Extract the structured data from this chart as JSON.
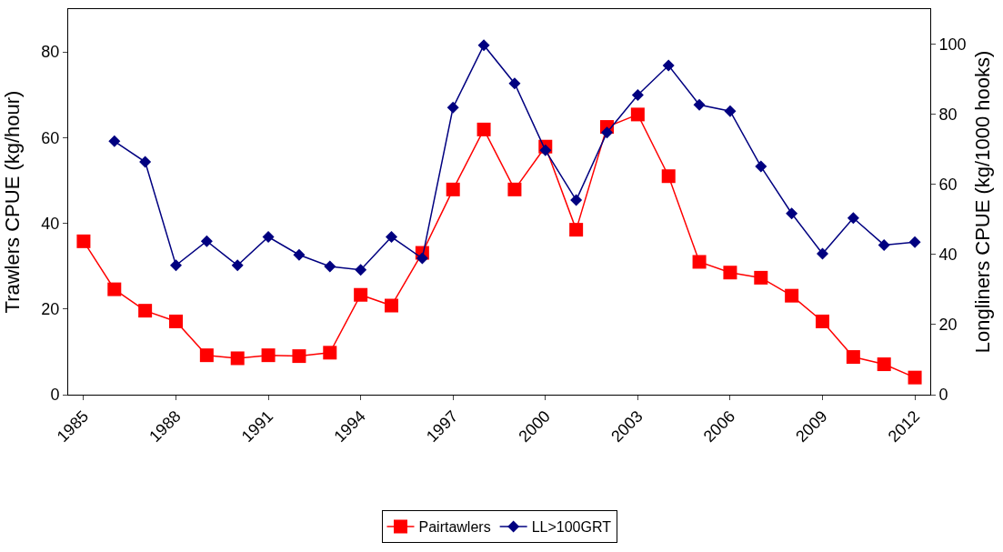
{
  "chart_data": {
    "type": "line",
    "ylabel": "Trawlers CPUE (kg/hour)",
    "y2label": "Longliners CPUE (kg/1000 hooks)",
    "x": [
      1985,
      1986,
      1987,
      1988,
      1989,
      1990,
      1991,
      1992,
      1993,
      1994,
      1995,
      1996,
      1997,
      1998,
      1999,
      2000,
      2001,
      2002,
      2003,
      2004,
      2005,
      2006,
      2007,
      2008,
      2009,
      2010,
      2011,
      2012
    ],
    "series": [
      {
        "name": "Pairtawlers",
        "color": "#ff0000",
        "marker": "square",
        "values": [
          35.8,
          24.6,
          19.6,
          17.1,
          9.2,
          8.5,
          9.2,
          9.0,
          9.8,
          23.3,
          20.8,
          33.1,
          47.9,
          61.9,
          47.9,
          57.9,
          38.5,
          62.5,
          65.4,
          51.0,
          31.0,
          28.5,
          27.3,
          23.1,
          17.1,
          8.8,
          7.1,
          4.0
        ]
      },
      {
        "name": "LL>100GRT",
        "color": "#000080",
        "marker": "diamond",
        "axis": "y2",
        "values": [
          null,
          72.3,
          66.4,
          36.9,
          43.8,
          36.9,
          45.0,
          39.9,
          36.6,
          35.6,
          45.0,
          38.9,
          81.9,
          99.7,
          88.8,
          69.7,
          55.5,
          74.8,
          85.5,
          93.9,
          82.7,
          80.9,
          65.1,
          51.7,
          40.2,
          50.4,
          42.7,
          43.5
        ]
      }
    ],
    "xlim": [
      1984.5,
      2012.5
    ],
    "xticks": [
      1985,
      1988,
      1991,
      1994,
      1997,
      2000,
      2003,
      2006,
      2009,
      2012
    ],
    "ylim": [
      0,
      90
    ],
    "yticks": [
      0,
      20,
      40,
      60,
      80
    ],
    "y2lim": [
      0,
      110
    ],
    "y2ticks": [
      0,
      20,
      40,
      60,
      80,
      100
    ],
    "grid": false,
    "legend": "bottom"
  }
}
